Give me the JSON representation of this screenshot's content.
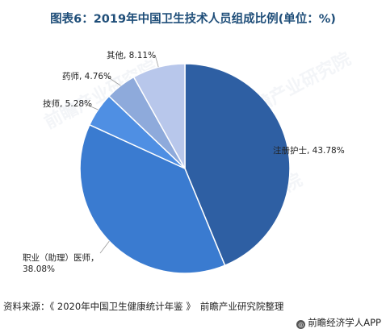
{
  "chart_data": {
    "type": "pie",
    "title": "图表6：2019年中国卫生技术人员组成比例(单位：%)",
    "start": "top",
    "direction": "clockwise",
    "slices": [
      {
        "label": "注册护士",
        "value": 43.78,
        "display": "43.78%",
        "color": "#2e5fa3"
      },
      {
        "label": "职业（助理）医师",
        "value": 38.08,
        "display": "38.08%",
        "color": "#3a7bd0"
      },
      {
        "label": "技师",
        "value": 5.28,
        "display": "5.28%",
        "color": "#4f8fe3"
      },
      {
        "label": "药师",
        "value": 4.76,
        "display": "4.76%",
        "color": "#8eaadb"
      },
      {
        "label": "其他",
        "value": 8.11,
        "display": "8.11%",
        "color": "#b8c7eb"
      }
    ]
  },
  "source": {
    "prefix": "资料来源：",
    "book": "《 2020年中国卫生健康统计年鉴 》",
    "org": "前瞻产业研究院整理"
  },
  "footer": {
    "brand": "前瞻经济学人APP",
    "icon": "qianzhan-logo-icon"
  },
  "watermark": {
    "text": "前瞻产业研究院"
  }
}
